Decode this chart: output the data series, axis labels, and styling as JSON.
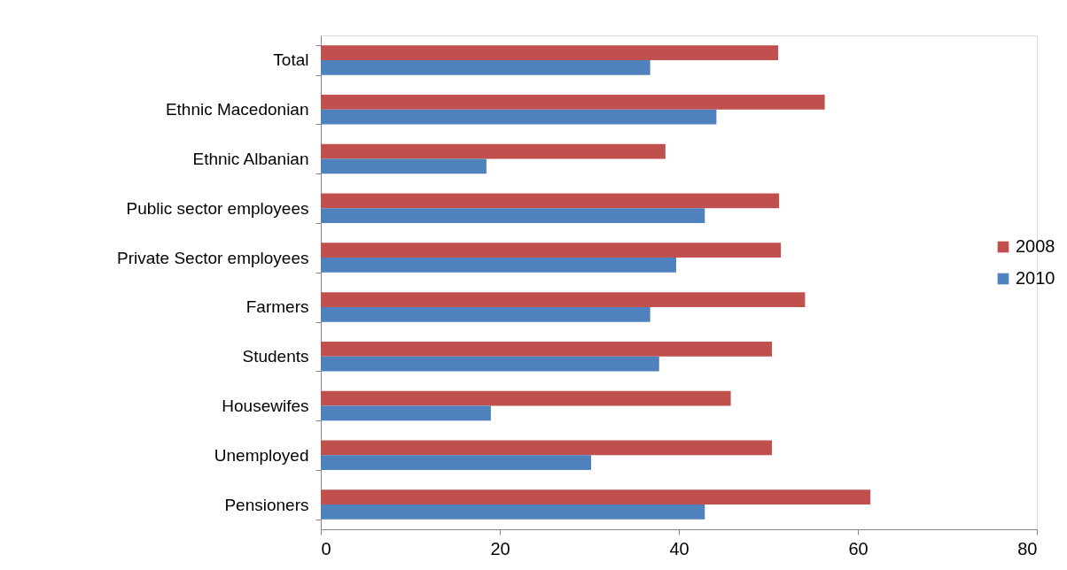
{
  "chart_data": {
    "type": "bar",
    "orientation": "horizontal",
    "categories": [
      "Total",
      "Ethnic Macedonian",
      "Ethnic Albanian",
      "Public sector employees",
      "Private Sector employees",
      "Farmers",
      "Students",
      "Housewifes",
      "Unemployed",
      "Pensioners"
    ],
    "series": [
      {
        "name": "2008",
        "color": "#c0504d",
        "values": [
          51.1,
          56.3,
          38.5,
          51.2,
          51.4,
          54.1,
          50.4,
          45.8,
          50.4,
          61.4
        ]
      },
      {
        "name": "2010",
        "color": "#4f81bd",
        "values": [
          36.8,
          44.2,
          18.5,
          42.9,
          39.7,
          36.8,
          37.8,
          19.0,
          30.2,
          42.9
        ]
      }
    ],
    "xlim": [
      0,
      80
    ],
    "xticks": [
      0,
      20,
      40,
      60,
      80
    ],
    "legend": "right",
    "grid": false
  }
}
